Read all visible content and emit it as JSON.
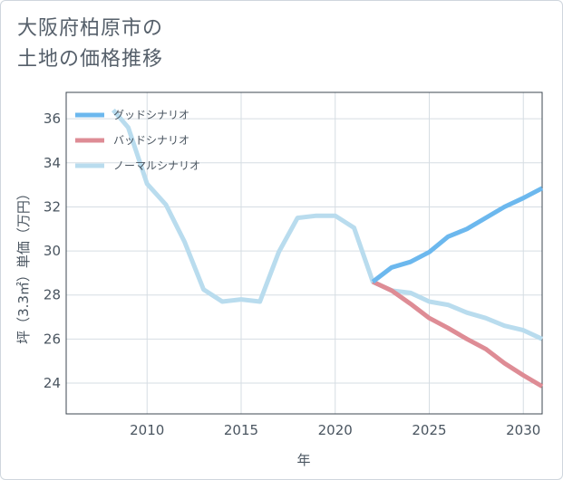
{
  "page": {
    "title_line1": "大阪府柏原市の",
    "title_line2": "土地の価格推移"
  },
  "chart_data": {
    "type": "line",
    "title": "大阪府柏原市の土地の価格推移",
    "xlabel": "年",
    "ylabel": "坪（3.3㎡）単価（万円）",
    "xlim": [
      2005.7,
      2031
    ],
    "ylim": [
      22.6,
      37.2
    ],
    "xticks": [
      2010,
      2015,
      2020,
      2025,
      2030
    ],
    "yticks": [
      24,
      26,
      28,
      30,
      32,
      34,
      36
    ],
    "grid": true,
    "legend_position": "top-left",
    "series": [
      {
        "name": "グッドシナリオ",
        "color": "#6cb8ee",
        "x": [
          2022,
          2023,
          2024,
          2025,
          2026,
          2027,
          2028,
          2029,
          2030,
          2031
        ],
        "y": [
          28.6,
          29.25,
          29.5,
          29.95,
          30.65,
          31.0,
          31.5,
          32.0,
          32.4,
          32.85
        ]
      },
      {
        "name": "バッドシナリオ",
        "color": "#de8c95",
        "x": [
          2022,
          2023,
          2024,
          2025,
          2026,
          2027,
          2028,
          2029,
          2030,
          2031
        ],
        "y": [
          28.6,
          28.2,
          27.6,
          26.95,
          26.5,
          26.0,
          25.55,
          24.9,
          24.35,
          23.85
        ]
      },
      {
        "name": "ノーマルシナリオ",
        "color": "#b9dcee",
        "x": [
          2008.2,
          2009,
          2010,
          2011,
          2012,
          2013,
          2014,
          2015,
          2016,
          2017,
          2018,
          2019,
          2020,
          2021,
          2022,
          2023,
          2024,
          2025,
          2026,
          2027,
          2028,
          2029,
          2030,
          2031
        ],
        "y": [
          36.4,
          35.6,
          33.05,
          32.1,
          30.4,
          28.25,
          27.7,
          27.8,
          27.7,
          29.95,
          31.5,
          31.6,
          31.6,
          31.05,
          28.6,
          28.2,
          28.1,
          27.7,
          27.55,
          27.2,
          26.95,
          26.6,
          26.4,
          26.0
        ]
      }
    ]
  }
}
